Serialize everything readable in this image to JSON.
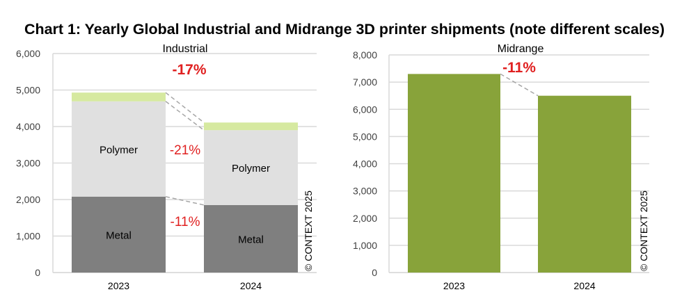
{
  "title": "Chart 1: Yearly Global Industrial and Midrange 3D printer shipments (note different scales)",
  "watermark": "© CONTEXT 2025",
  "chart_data": [
    {
      "type": "bar",
      "stacked": true,
      "title": "Industrial",
      "categories": [
        "2023",
        "2024"
      ],
      "ylim": [
        0,
        6000
      ],
      "yticks": [
        0,
        1000,
        2000,
        3000,
        4000,
        5000,
        6000
      ],
      "ytick_labels": [
        "0",
        "1,000",
        "2,000",
        "3,000",
        "4,000",
        "5,000",
        "6,000"
      ],
      "grid": true,
      "series": [
        {
          "name": "Metal",
          "values": [
            2080,
            1850
          ],
          "color": "#7f7f7f"
        },
        {
          "name": "Polymer",
          "values": [
            2610,
            2050
          ],
          "color": "#e0e0e0"
        },
        {
          "values": [
            240,
            210
          ],
          "color": "#d6e9a0"
        }
      ],
      "annotations": [
        {
          "text": "-17%",
          "target": "total",
          "color": "#e02020"
        },
        {
          "text": "-21%",
          "target": "Polymer",
          "color": "#e02020"
        },
        {
          "text": "-11%",
          "target": "Metal",
          "color": "#e02020"
        }
      ]
    },
    {
      "type": "bar",
      "title": "Midrange",
      "categories": [
        "2023",
        "2024"
      ],
      "ylim": [
        0,
        8000
      ],
      "yticks": [
        0,
        1000,
        2000,
        3000,
        4000,
        5000,
        6000,
        7000,
        8000
      ],
      "ytick_labels": [
        "0",
        "1,000",
        "2,000",
        "3,000",
        "4,000",
        "5,000",
        "6,000",
        "7,000",
        "8,000"
      ],
      "grid": true,
      "series": [
        {
          "values": [
            7300,
            6500
          ],
          "color": "#88a33a"
        }
      ],
      "annotations": [
        {
          "text": "-11%",
          "target": "total",
          "color": "#e02020"
        }
      ]
    }
  ]
}
